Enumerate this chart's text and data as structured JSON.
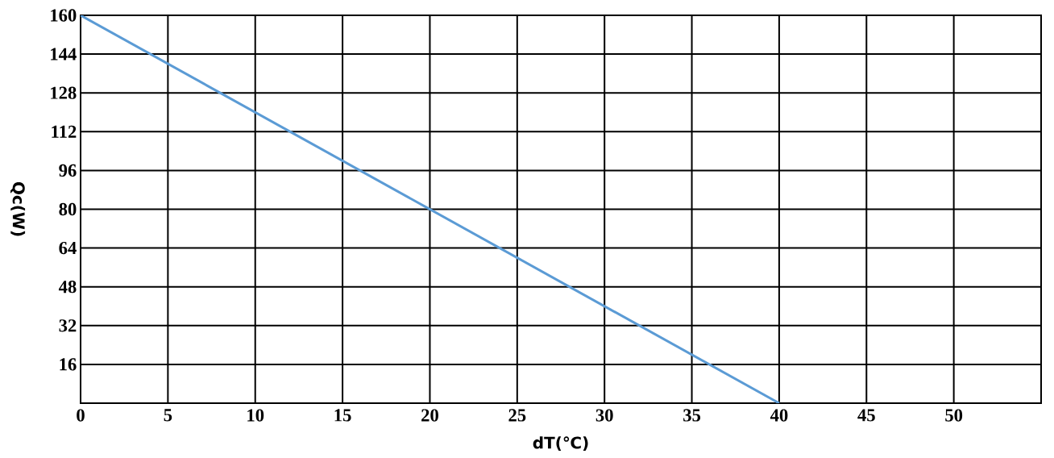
{
  "chart_data": {
    "type": "line",
    "xlabel": "dT(℃)",
    "ylabel": "Qc(W)",
    "x": [
      0,
      40
    ],
    "series": [
      {
        "color": "#5b9bd5",
        "values": [
          160,
          0
        ]
      }
    ],
    "xlim": [
      0,
      55
    ],
    "ylim": [
      0,
      160
    ],
    "xticks": [
      0,
      5,
      10,
      15,
      20,
      25,
      30,
      35,
      40,
      45,
      50
    ],
    "yticks": [
      16,
      32,
      48,
      64,
      80,
      96,
      112,
      128,
      144,
      160
    ],
    "grid": true,
    "line_style": "solid"
  }
}
